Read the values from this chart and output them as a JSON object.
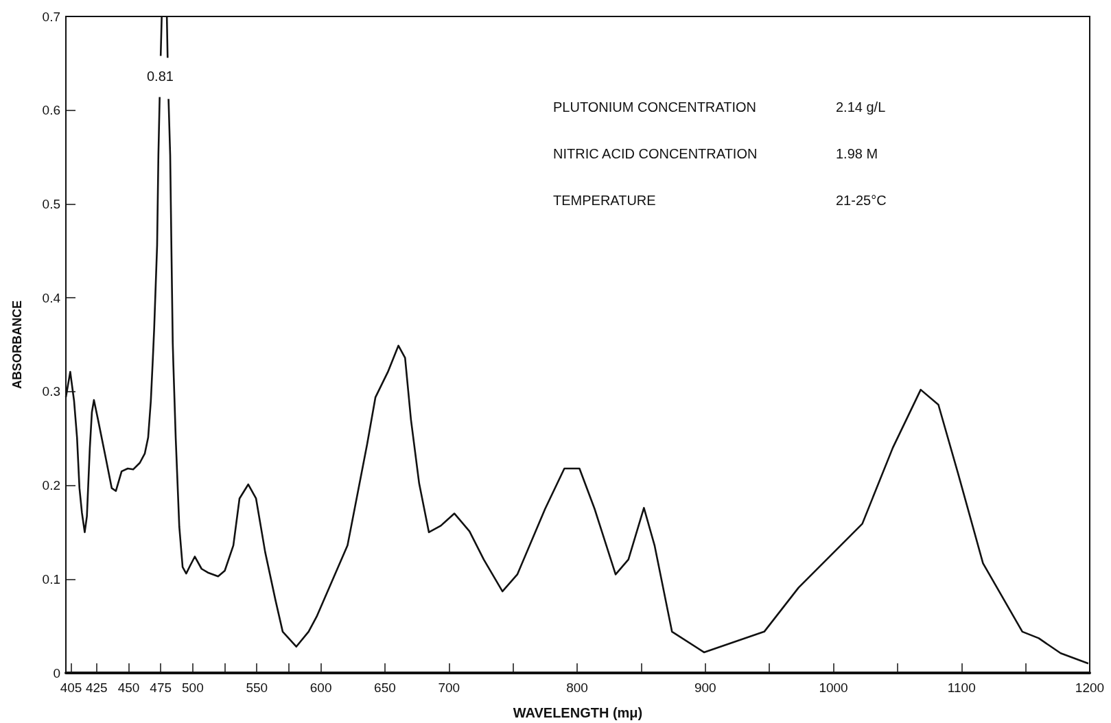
{
  "chart_data": {
    "type": "line",
    "xlabel": "WAVELENGTH (mμ)",
    "ylabel": "ABSORBANCE",
    "xlim": [
      401,
      1200
    ],
    "ylim": [
      0,
      0.7
    ],
    "xticks": [
      405,
      425,
      450,
      475,
      500,
      {
        "value": 525,
        "label": null
      },
      550,
      {
        "value": 575,
        "label": null
      },
      600,
      650,
      700,
      {
        "value": 750,
        "label": null
      },
      800,
      {
        "value": 850,
        "label": null
      },
      900,
      {
        "value": 950,
        "label": null
      },
      1000,
      {
        "value": 1050,
        "label": null
      },
      1100,
      {
        "value": 1150,
        "label": null
      },
      1200
    ],
    "yticks": [
      0,
      0.1,
      0.2,
      0.3,
      0.4,
      0.5,
      0.6,
      0.7
    ],
    "grid": false,
    "marker": "none",
    "line_style": "solid",
    "series": [
      {
        "color": "#111111",
        "x": [
          401,
          404.4,
          407.4,
          409.7,
          411.6,
          413.5,
          415.7,
          417.4,
          419.7,
          421.3,
          422.9,
          426.1,
          431.7,
          436.8,
          440,
          444.5,
          449.3,
          453.5,
          458.7,
          462.6,
          465.2,
          467.3,
          468.9,
          469.9,
          472.2,
          473.2,
          474.2,
          474.6,
          475,
          475.8,
          477.8,
          479.8,
          480.4,
          480.8,
          481.1,
          482.4,
          483.4,
          484.4,
          484.9,
          486.7,
          489.5,
          492.1,
          494.9,
          498.2,
          501.6,
          506.9,
          511.8,
          519.8,
          525,
          531.7,
          536.5,
          543.3,
          549.4,
          556.5,
          564.5,
          570.2,
          580.8,
          590.4,
          596.7,
          620.8,
          636.1,
          642.6,
          652.3,
          660.5,
          665.7,
          670.3,
          676.7,
          684.3,
          693.6,
          704.2,
          716,
          727.1,
          741.7,
          753.3,
          775,
          790,
          801.8,
          813.6,
          830,
          840,
          852.1,
          860.4,
          874,
          899,
          946,
          972.8,
          1022.5,
          1046.3,
          1068.1,
          1081.9,
          1097.2,
          1116.7,
          1147.4,
          1160.2,
          1177.3,
          1198.9
        ],
        "values": [
          0.294,
          0.321,
          0.29,
          0.251,
          0.197,
          0.171,
          0.15,
          0.167,
          0.24,
          0.278,
          0.291,
          0.27,
          0.232,
          0.197,
          0.194,
          0.215,
          0.218,
          0.217,
          0.224,
          0.234,
          0.251,
          0.29,
          0.336,
          0.367,
          0.456,
          0.552,
          0.614,
          null,
          0.658,
          0.7,
          null,
          0.7,
          0.656,
          null,
          0.612,
          0.552,
          0.449,
          0.352,
          0.328,
          0.251,
          0.156,
          0.113,
          0.106,
          0.115,
          0.124,
          0.111,
          0.107,
          0.103,
          0.109,
          0.136,
          0.186,
          0.201,
          0.186,
          0.129,
          0.078,
          0.044,
          0.028,
          0.044,
          0.06,
          0.136,
          0.244,
          0.294,
          0.321,
          0.349,
          0.336,
          0.27,
          0.202,
          0.15,
          0.157,
          0.17,
          0.151,
          0.121,
          0.087,
          0.105,
          0.175,
          0.218,
          0.218,
          0.175,
          0.105,
          0.121,
          0.176,
          0.136,
          0.044,
          0.022,
          0.044,
          0.091,
          0.159,
          0.24,
          0.302,
          0.286,
          0.213,
          0.117,
          0.044,
          0.037,
          0.021,
          0.01
        ]
      }
    ],
    "annotations": [
      "0.81",
      "PLUTONIUM CONCENTRATION",
      "2.14 g/L",
      "NITRIC ACID CONCENTRATION",
      "1.98 M",
      "TEMPERATURE",
      "21-25°C"
    ]
  }
}
